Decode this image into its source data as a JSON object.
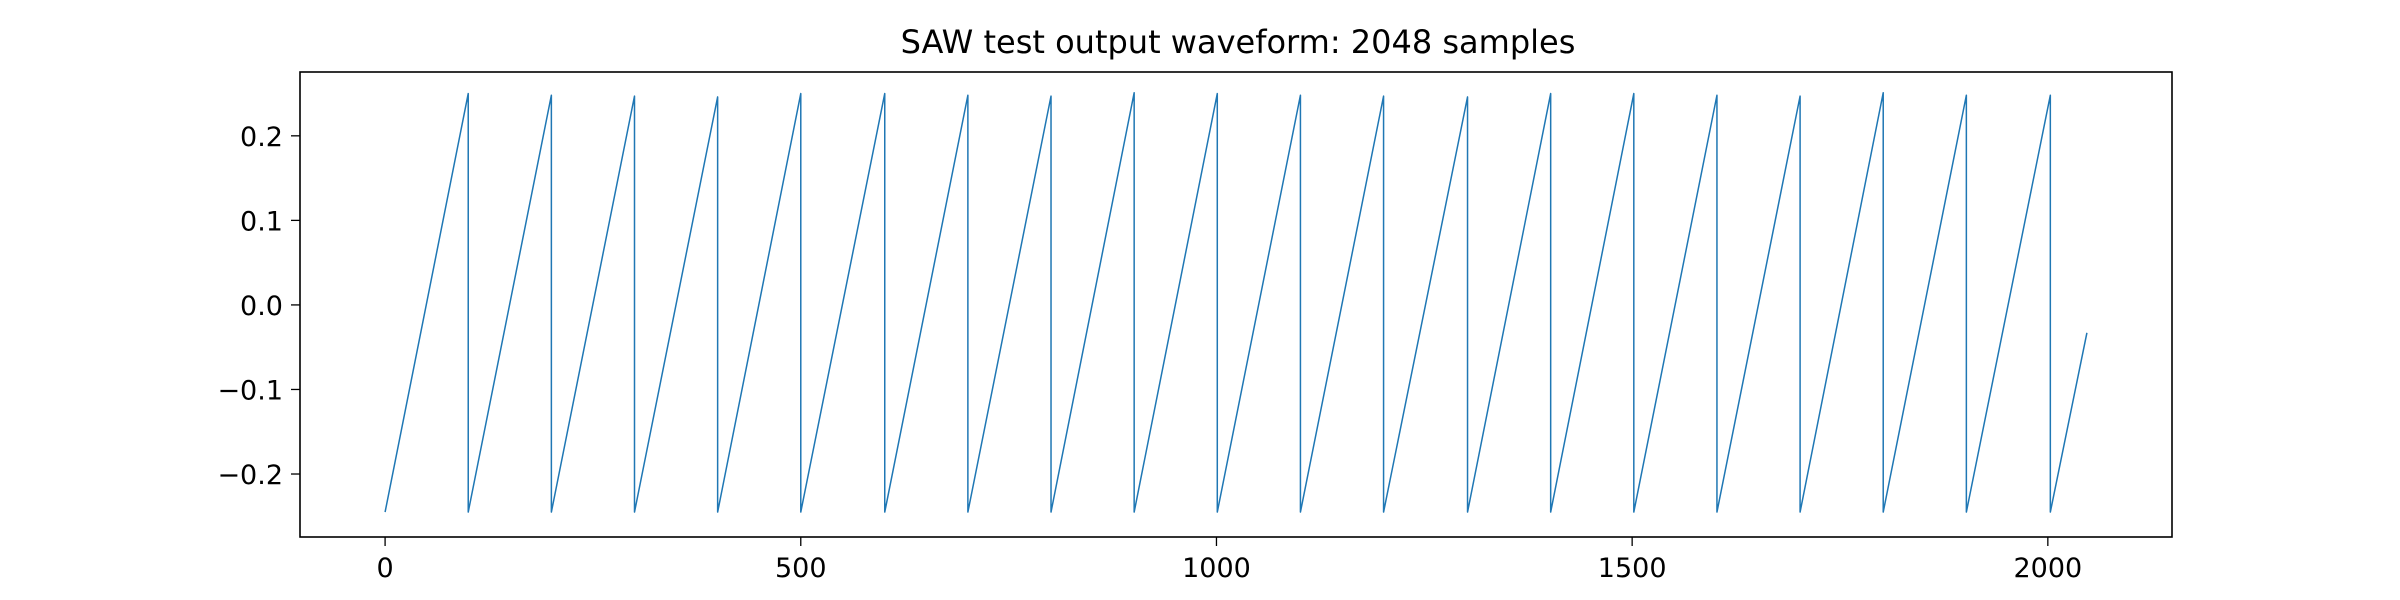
{
  "chart_data": {
    "type": "line",
    "title": "SAW test output waveform: 2048 samples",
    "xlabel": "",
    "ylabel": "",
    "xlim": [
      -102.35,
      2149.35
    ],
    "ylim": [
      -0.2745,
      0.2755
    ],
    "xticks": [
      0,
      500,
      1000,
      1500,
      2000
    ],
    "xtick_labels": [
      "0",
      "500",
      "1000",
      "1500",
      "2000"
    ],
    "yticks": [
      -0.2,
      -0.1,
      0.0,
      0.1,
      0.2
    ],
    "ytick_labels": [
      "−0.2",
      "−0.1",
      "0.0",
      "0.1",
      "0.2"
    ],
    "grid": false,
    "line_color": "#1f77b4",
    "series": [
      {
        "x": [
          0,
          100,
          100,
          200,
          200,
          300,
          300,
          400,
          400,
          500,
          500,
          601,
          601,
          701,
          701,
          801,
          801,
          901,
          901,
          1001,
          1001,
          1101,
          1101,
          1201,
          1201,
          1302,
          1302,
          1402,
          1402,
          1502,
          1502,
          1602,
          1602,
          1702,
          1702,
          1802,
          1802,
          1902,
          1902,
          2003,
          2003,
          2047
        ],
        "values": [
          -0.245,
          0.25,
          -0.245,
          0.248,
          -0.245,
          0.247,
          -0.245,
          0.246,
          -0.245,
          0.25,
          -0.245,
          0.25,
          -0.245,
          0.248,
          -0.245,
          0.247,
          -0.245,
          0.251,
          -0.245,
          0.25,
          -0.245,
          0.248,
          -0.245,
          0.247,
          -0.245,
          0.246,
          -0.245,
          0.25,
          -0.245,
          0.25,
          -0.245,
          0.248,
          -0.245,
          0.247,
          -0.245,
          0.251,
          -0.245,
          0.248,
          -0.245,
          0.248,
          -0.245,
          -0.033
        ]
      }
    ]
  }
}
